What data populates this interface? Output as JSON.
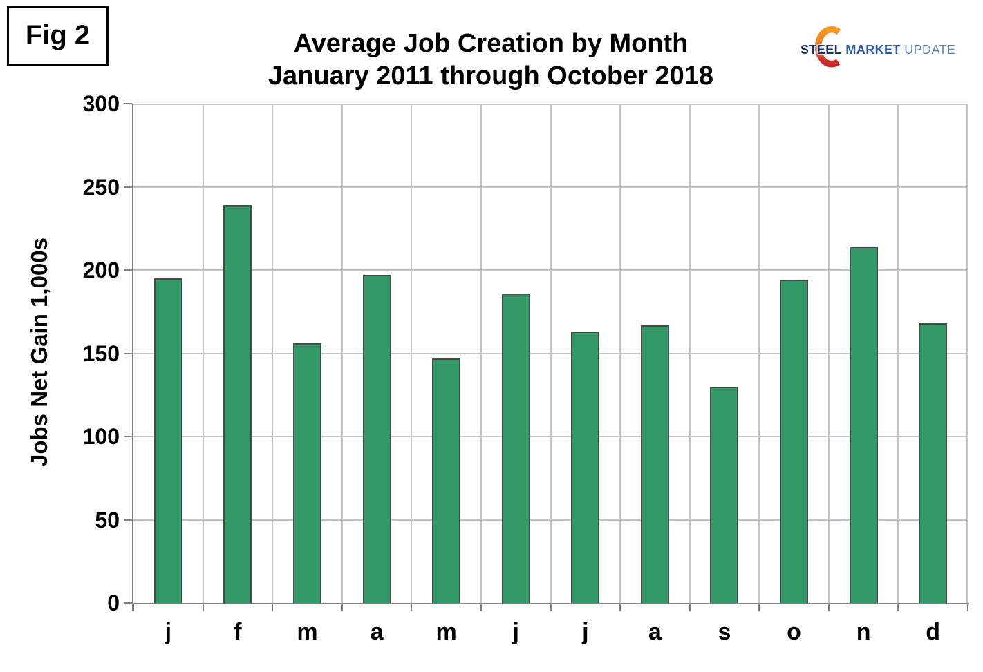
{
  "fig_label": "Fig 2",
  "title": {
    "line1": "Average Job Creation by Month",
    "line2": "January 2011 through October 2018"
  },
  "logo": {
    "word1": "STEEL",
    "word2": "MARKET",
    "word3": "UPDATE",
    "crescent_top_color": "#f79b1e",
    "crescent_bottom_color": "#c9272c",
    "word1_color": "#17356b",
    "word2_color": "#2e5ea8",
    "word3_color": "#5f84b8"
  },
  "chart_data": {
    "type": "bar",
    "categories": [
      "j",
      "f",
      "m",
      "a",
      "m",
      "j",
      "j",
      "a",
      "s",
      "o",
      "n",
      "d"
    ],
    "values": [
      195,
      239,
      156,
      197,
      147,
      186,
      163,
      167,
      130,
      194,
      214,
      168
    ],
    "title": "Average Job Creation by Month — January 2011 through October 2018",
    "xlabel": "",
    "ylabel": "Jobs Net Gain 1,000s",
    "ylim": [
      0,
      300
    ],
    "ytick_step": 50,
    "grid": true,
    "legend": "none",
    "bar_color": "#339966",
    "bar_border_color": "#3f4f47",
    "gridline_color": "#c4c4c4",
    "axis_color": "#7f7f7f"
  }
}
